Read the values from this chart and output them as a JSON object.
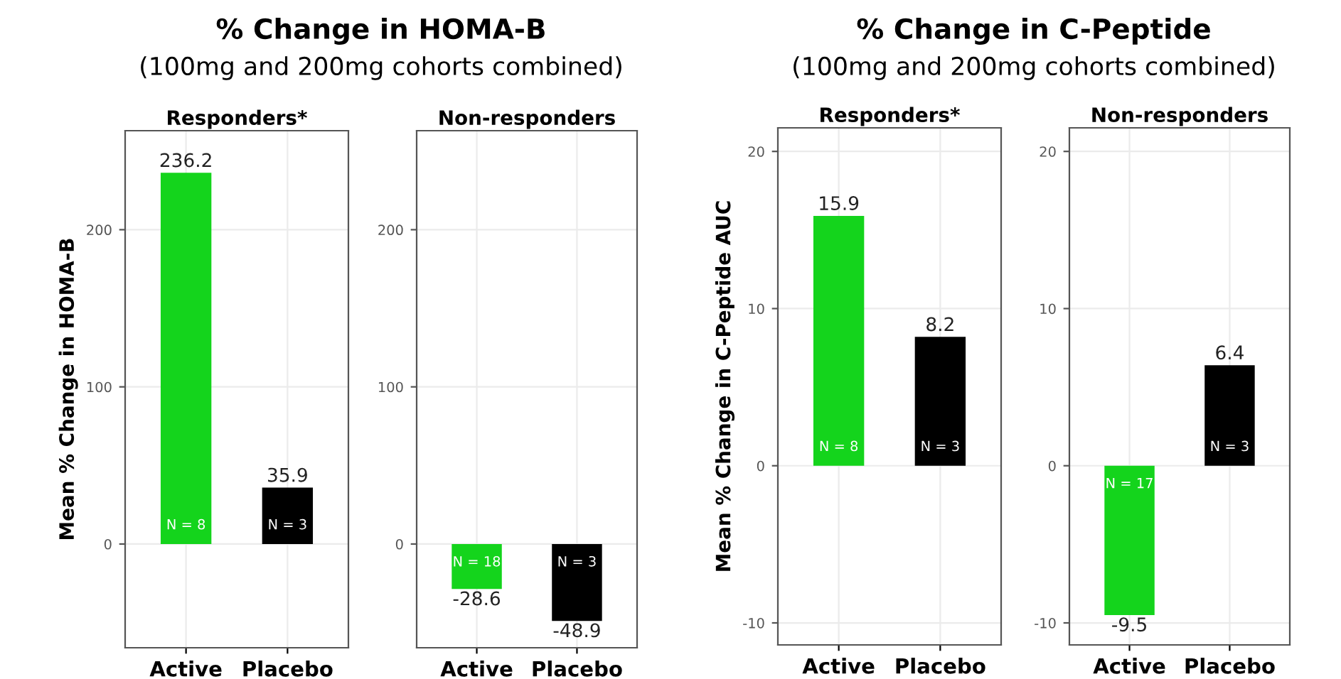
{
  "chart_data": [
    {
      "type": "bar",
      "title": "Responders*",
      "ylabel": "Mean % Change in HOMA-B",
      "categories": [
        "Active",
        "Placebo"
      ],
      "values": [
        236.2,
        35.9
      ],
      "colors": [
        "#14d41c",
        "#000000"
      ],
      "data_labels": true,
      "ylim": [
        -66,
        263
      ],
      "yticks": [
        0,
        100,
        200
      ],
      "grid": true,
      "annotations": [
        "% Change in HOMA-B",
        "(100mg and 200mg cohorts combined)",
        "N = 8",
        "N = 3"
      ]
    },
    {
      "type": "bar",
      "title": "Non-responders",
      "categories": [
        "Active",
        "Placebo"
      ],
      "values": [
        -28.6,
        -48.9
      ],
      "colors": [
        "#14d41c",
        "#000000"
      ],
      "data_labels": true,
      "ylim": [
        -66,
        263
      ],
      "yticks": [
        0,
        100,
        200
      ],
      "grid": true,
      "annotations": [
        "N = 18",
        "N = 3"
      ]
    },
    {
      "type": "bar",
      "title": "Responders*",
      "ylabel": "Mean % Change in C-Peptide AUC",
      "categories": [
        "Active",
        "Placebo"
      ],
      "values": [
        15.9,
        8.2
      ],
      "colors": [
        "#14d41c",
        "#000000"
      ],
      "data_labels": true,
      "ylim": [
        -11.4,
        21.5
      ],
      "yticks": [
        -10,
        0,
        10,
        20
      ],
      "grid": true,
      "annotations": [
        "% Change in C-Peptide",
        "(100mg and 200mg cohorts combined)",
        "N = 8",
        "N = 3"
      ]
    },
    {
      "type": "bar",
      "title": "Non-responders",
      "categories": [
        "Active",
        "Placebo"
      ],
      "values": [
        -9.5,
        6.4
      ],
      "colors": [
        "#14d41c",
        "#000000"
      ],
      "data_labels": true,
      "ylim": [
        -11.4,
        21.5
      ],
      "yticks": [
        -10,
        0,
        10,
        20
      ],
      "grid": true,
      "annotations": [
        "N = 17",
        "N = 3"
      ]
    }
  ]
}
